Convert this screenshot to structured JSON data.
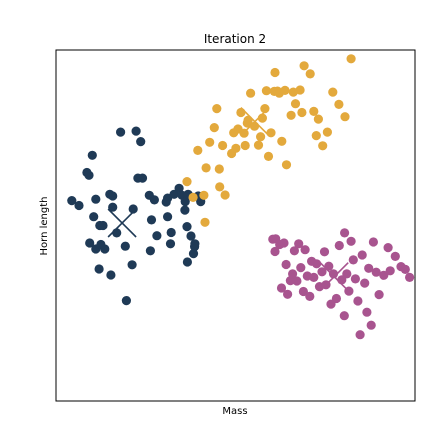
{
  "chart_data": {
    "type": "scatter",
    "title": "Iteration 2",
    "xlabel": "Mass",
    "ylabel": "Horn length",
    "xlim": [
      0,
      100
    ],
    "ylim": [
      0,
      100
    ],
    "grid": false,
    "show_ticks": false,
    "series": [
      {
        "color": "#1f3a56",
        "points": [
          [
            4.4,
            57.1
          ],
          [
            6.4,
            55.7
          ],
          [
            8.6,
            65.1
          ],
          [
            9.2,
            64.3
          ],
          [
            10.1,
            70.0
          ],
          [
            11.1,
            57.5
          ],
          [
            12.2,
            50.0
          ],
          [
            11.1,
            43.3
          ],
          [
            13.6,
            43.3
          ],
          [
            10.5,
            52.5
          ],
          [
            9.4,
            45.0
          ],
          [
            12.0,
            37.6
          ],
          [
            13.1,
            50.0
          ],
          [
            15.8,
            55.2
          ],
          [
            15.0,
            58.9
          ],
          [
            12.5,
            44.6
          ],
          [
            15.3,
            35.9
          ],
          [
            15.8,
            58.4
          ],
          [
            16.9,
            47.9
          ],
          [
            18.0,
            76.6
          ],
          [
            21.5,
            54.7
          ],
          [
            21.2,
            38.8
          ],
          [
            19.6,
            28.6
          ],
          [
            19.3,
            44.1
          ],
          [
            22.3,
            76.9
          ],
          [
            23.6,
            73.9
          ],
          [
            22.8,
            63.5
          ],
          [
            24.1,
            63.5
          ],
          [
            26.3,
            42.8
          ],
          [
            26.0,
            58.6
          ],
          [
            26.6,
            51.6
          ],
          [
            28.1,
            47.1
          ],
          [
            27.4,
            57.3
          ],
          [
            30.7,
            56.7
          ],
          [
            31.1,
            57.8
          ],
          [
            31.1,
            52.5
          ],
          [
            31.9,
            44.8
          ],
          [
            32.1,
            48.0
          ],
          [
            32.9,
            58.9
          ],
          [
            34.3,
            60.6
          ],
          [
            35.1,
            58.6
          ],
          [
            35.9,
            54.4
          ],
          [
            36.0,
            56.8
          ],
          [
            36.8,
            58.9
          ],
          [
            36.5,
            49.7
          ],
          [
            37.6,
            47.0
          ],
          [
            38.3,
            42.0
          ],
          [
            38.7,
            44.8
          ],
          [
            39.8,
            58.3
          ],
          [
            39.6,
            58.4
          ],
          [
            40.3,
            56.8
          ],
          [
            36.6,
            39.6
          ],
          [
            38.6,
            44.0
          ]
        ]
      },
      {
        "color": "#e3a93c",
        "points": [
          [
            36.5,
            62.5
          ],
          [
            39.5,
            71.4
          ],
          [
            41.8,
            66.4
          ],
          [
            41.2,
            58.6
          ],
          [
            42.8,
            73.7
          ],
          [
            44.1,
            77.9
          ],
          [
            44.8,
            83.3
          ],
          [
            45.6,
            61.0
          ],
          [
            45.5,
            66.1
          ],
          [
            46.4,
            72.8
          ],
          [
            47.1,
            58.7
          ],
          [
            48.9,
            70.5
          ],
          [
            49.5,
            76.4
          ],
          [
            50.1,
            72.0
          ],
          [
            50.7,
            77.5
          ],
          [
            51.5,
            82.2
          ],
          [
            52.4,
            76.3
          ],
          [
            52.7,
            72.8
          ],
          [
            53.5,
            80.0
          ],
          [
            53.3,
            79.2
          ],
          [
            54.2,
            87.7
          ],
          [
            55.3,
            78.3
          ],
          [
            56.4,
            72.9
          ],
          [
            57.0,
            75.3
          ],
          [
            57.5,
            80.6
          ],
          [
            58.2,
            83.3
          ],
          [
            58.6,
            88.4
          ],
          [
            59.2,
            69.7
          ],
          [
            59.9,
            76.4
          ],
          [
            60.8,
            88.2
          ],
          [
            61.0,
            93.6
          ],
          [
            61.7,
            88.3
          ],
          [
            62.2,
            87.7
          ],
          [
            62.9,
            74.0
          ],
          [
            63.8,
            88.5
          ],
          [
            64.2,
            67.3
          ],
          [
            65.5,
            81.4
          ],
          [
            66.1,
            88.0
          ],
          [
            66.7,
            84.7
          ],
          [
            68.0,
            88.6
          ],
          [
            69.1,
            95.5
          ],
          [
            68.5,
            82.2
          ],
          [
            70.8,
            93.2
          ],
          [
            71.8,
            82.5
          ],
          [
            72.5,
            75.6
          ],
          [
            73.1,
            80.3
          ],
          [
            74.3,
            72.7
          ],
          [
            75.6,
            76.6
          ],
          [
            77.1,
            88.0
          ],
          [
            78.8,
            84.5
          ],
          [
            80.5,
            81.0
          ],
          [
            82.2,
            97.5
          ],
          [
            41.5,
            50.9
          ],
          [
            38.2,
            58.0
          ]
        ]
      },
      {
        "color": "#a8548f",
        "points": [
          [
            60.4,
            46.1
          ],
          [
            61.0,
            42.6
          ],
          [
            61.2,
            46.2
          ],
          [
            62.3,
            44.6
          ],
          [
            62.8,
            32.2
          ],
          [
            63.5,
            45.0
          ],
          [
            64.1,
            38.9
          ],
          [
            64.5,
            30.4
          ],
          [
            65.3,
            34.3
          ],
          [
            65.9,
            36.2
          ],
          [
            66.4,
            42.8
          ],
          [
            67.1,
            34.2
          ],
          [
            67.6,
            44.8
          ],
          [
            68.2,
            38.0
          ],
          [
            68.9,
            31.2
          ],
          [
            69.4,
            43.1
          ],
          [
            70.0,
            35.6
          ],
          [
            70.7,
            29.8
          ],
          [
            71.2,
            39.8
          ],
          [
            71.8,
            35.2
          ],
          [
            72.6,
            39.1
          ],
          [
            73.4,
            32.6
          ],
          [
            74.1,
            36.8
          ],
          [
            74.8,
            42.5
          ],
          [
            75.2,
            33.1
          ],
          [
            76.0,
            38.4
          ],
          [
            76.6,
            27.6
          ],
          [
            77.3,
            36.2
          ],
          [
            78.1,
            29.2
          ],
          [
            78.9,
            44.3
          ],
          [
            79.6,
            34.5
          ],
          [
            80.3,
            24.3
          ],
          [
            81.0,
            36.2
          ],
          [
            81.6,
            31.3
          ],
          [
            82.2,
            45.5
          ],
          [
            82.8,
            40.2
          ],
          [
            83.4,
            34.8
          ],
          [
            84.1,
            28.5
          ],
          [
            84.7,
            18.9
          ],
          [
            85.3,
            41.6
          ],
          [
            86.0,
            33.6
          ],
          [
            86.6,
            25.3
          ],
          [
            87.1,
            37.8
          ],
          [
            87.8,
            21.6
          ],
          [
            88.4,
            45.3
          ],
          [
            89.2,
            36.7
          ],
          [
            90.0,
            30.3
          ],
          [
            91.3,
            35.8
          ],
          [
            92.5,
            43.7
          ],
          [
            93.1,
            37.1
          ],
          [
            94.5,
            41.2
          ],
          [
            96.1,
            38.3
          ],
          [
            97.3,
            37.5
          ],
          [
            98.5,
            35.2
          ],
          [
            80.4,
            47.9
          ]
        ]
      }
    ],
    "centroids": [
      {
        "color": "#1f3a56",
        "x": 18.4,
        "y": 50.7
      },
      {
        "color": "#e3a93c",
        "x": 55.4,
        "y": 79.6
      },
      {
        "color": "#a8548f",
        "x": 77.5,
        "y": 35.4
      }
    ]
  }
}
